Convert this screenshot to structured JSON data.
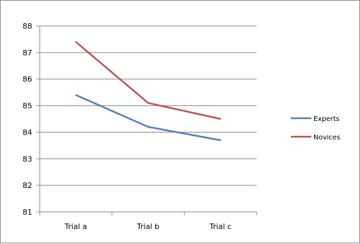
{
  "chart_data": {
    "type": "line",
    "title": "",
    "xlabel": "",
    "ylabel": "",
    "categories": [
      "Trial a",
      "Trial b",
      "Trial c"
    ],
    "ylim": [
      81,
      88
    ],
    "yticks": [
      88,
      87,
      86,
      85,
      84,
      83,
      82,
      81
    ],
    "grid": "horizontal",
    "legend_position": "right",
    "series": [
      {
        "name": "Experts",
        "color": "#4f81bd",
        "values": [
          85.4,
          84.2,
          83.7
        ]
      },
      {
        "name": "Novices",
        "color": "#c0504d",
        "values": [
          87.4,
          85.1,
          84.5
        ]
      }
    ]
  }
}
